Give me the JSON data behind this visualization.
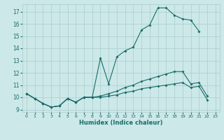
{
  "xlabel": "Humidex (Indice chaleur)",
  "bg_color": "#cce8e8",
  "grid_color": "#aacccc",
  "line_color": "#1a6b6b",
  "xlim": [
    -0.5,
    23.5
  ],
  "ylim": [
    8.8,
    17.6
  ],
  "yticks": [
    9,
    10,
    11,
    12,
    13,
    14,
    15,
    16,
    17
  ],
  "xticks": [
    0,
    1,
    2,
    3,
    4,
    5,
    6,
    7,
    8,
    9,
    10,
    11,
    12,
    13,
    14,
    15,
    16,
    17,
    18,
    19,
    20,
    21,
    22,
    23
  ],
  "line1_x": [
    0,
    1,
    2,
    3,
    4,
    5,
    6,
    7,
    8,
    9,
    10,
    11,
    12,
    13,
    14,
    15,
    16,
    17,
    18,
    19,
    20,
    21
  ],
  "line1_y": [
    10.3,
    9.9,
    9.5,
    9.2,
    9.3,
    9.9,
    9.6,
    10.0,
    10.0,
    13.2,
    11.1,
    13.3,
    13.8,
    14.1,
    15.5,
    15.9,
    17.3,
    17.3,
    16.7,
    16.4,
    16.3,
    15.4
  ],
  "line2_x": [
    0,
    1,
    2,
    3,
    4,
    5,
    6,
    7,
    8,
    9,
    10,
    11,
    12,
    13,
    14,
    15,
    16,
    17,
    18,
    19,
    20,
    21,
    22
  ],
  "line2_y": [
    10.3,
    9.9,
    9.5,
    9.2,
    9.3,
    9.9,
    9.6,
    10.0,
    10.0,
    10.1,
    10.3,
    10.5,
    10.8,
    11.0,
    11.3,
    11.5,
    11.7,
    11.9,
    12.1,
    12.1,
    11.1,
    11.2,
    10.1
  ],
  "line3_x": [
    0,
    1,
    2,
    3,
    4,
    5,
    6,
    7,
    8,
    9,
    10,
    11,
    12,
    13,
    14,
    15,
    16,
    17,
    18,
    19,
    20,
    21,
    22
  ],
  "line3_y": [
    10.3,
    9.9,
    9.5,
    9.2,
    9.3,
    9.9,
    9.6,
    10.0,
    10.0,
    10.0,
    10.1,
    10.2,
    10.4,
    10.5,
    10.7,
    10.8,
    10.9,
    11.0,
    11.1,
    11.2,
    10.8,
    10.9,
    9.8
  ]
}
